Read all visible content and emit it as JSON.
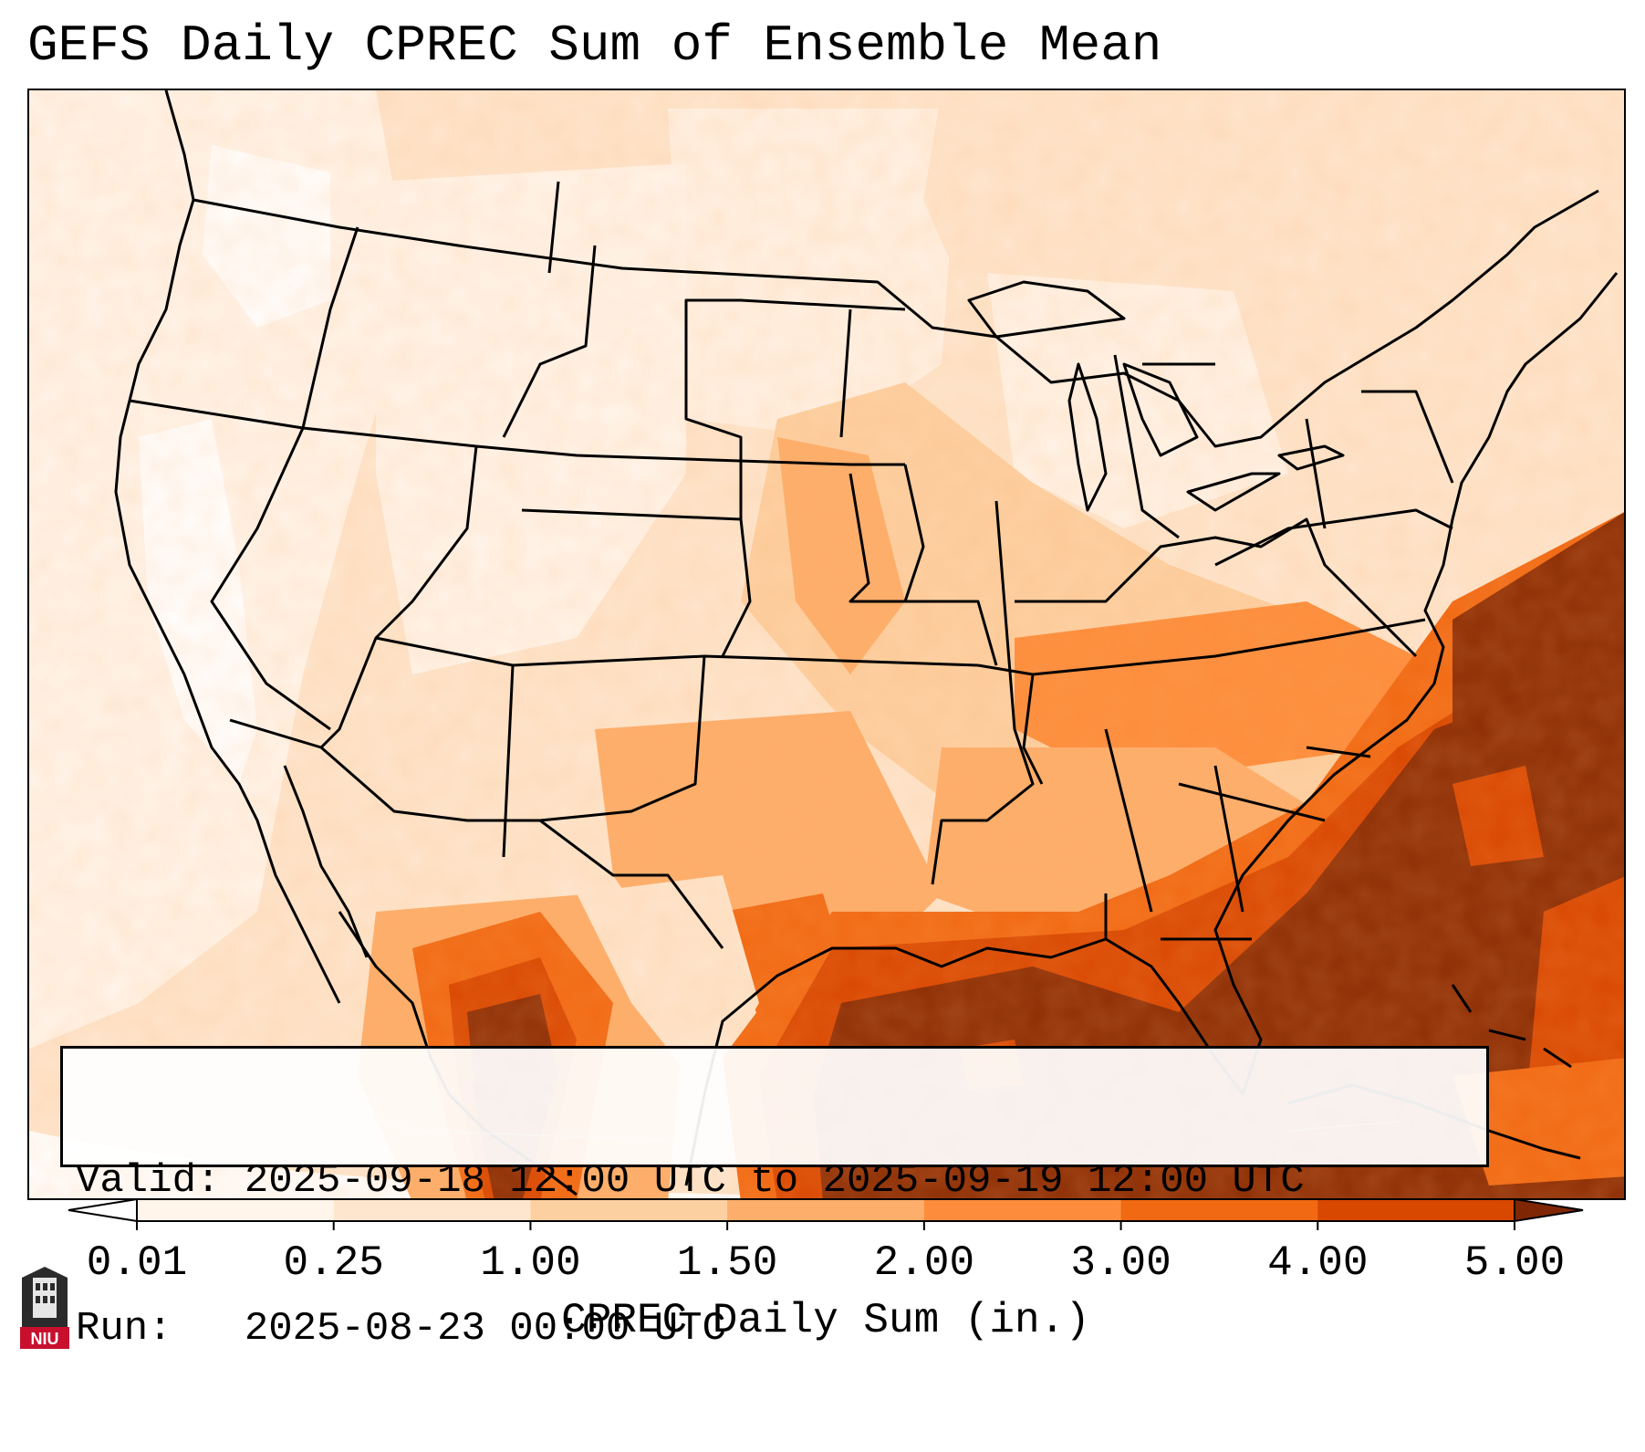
{
  "title": "GEFS Daily CPREC Sum of Ensemble Mean",
  "info": {
    "valid_label": "Valid:",
    "valid_value": "2025-09-18 12:00 UTC to 2025-09-19 12:00 UTC",
    "run_label": "Run:",
    "run_value": "2025-08-23 00:00 UTC"
  },
  "colorbar": {
    "title": "CPREC Daily Sum (in.)",
    "ticks": [
      "0.01",
      "0.25",
      "1.00",
      "1.50",
      "2.00",
      "3.00",
      "4.00",
      "5.00"
    ],
    "colors": [
      "#fff5eb",
      "#fee6ce",
      "#fdd0a2",
      "#fdae6b",
      "#fd8d3c",
      "#f16913",
      "#d94801",
      "#8c2d04"
    ],
    "under_color": "#ffffff",
    "over_color": "#7f2704"
  },
  "logo": {
    "text": "NIU",
    "color": "#c8102e"
  }
}
